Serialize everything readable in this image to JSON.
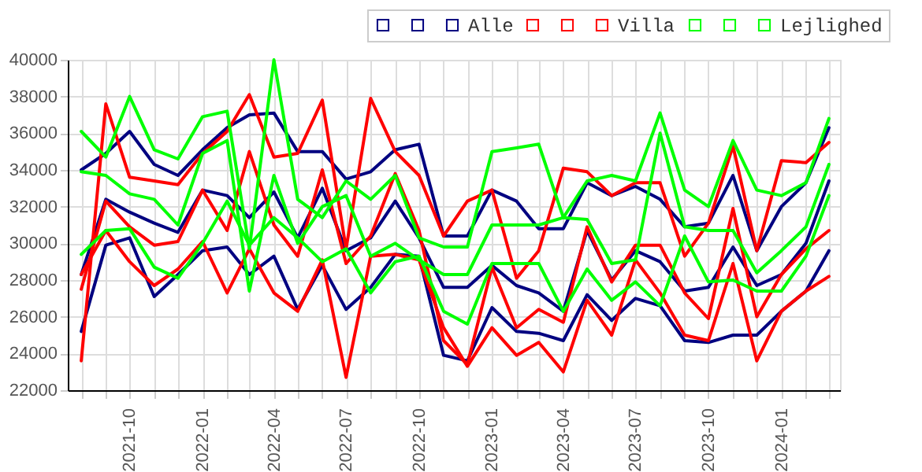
{
  "chart_data": {
    "type": "line",
    "x": [
      "2021-08",
      "2021-09",
      "2021-10",
      "2021-11",
      "2021-12",
      "2022-01",
      "2022-02",
      "2022-03",
      "2022-04",
      "2022-05",
      "2022-06",
      "2022-07",
      "2022-08",
      "2022-09",
      "2022-10",
      "2022-11",
      "2022-12",
      "2023-01",
      "2023-02",
      "2023-03",
      "2023-04",
      "2023-05",
      "2023-06",
      "2023-07",
      "2023-08",
      "2023-09",
      "2023-10",
      "2023-11",
      "2023-12",
      "2024-01",
      "2024-02",
      "2024-03"
    ],
    "series": [
      {
        "color": "#000080",
        "values": [
          34000,
          34900,
          36100,
          34300,
          33700,
          35100,
          36300,
          37000,
          37100,
          35000,
          35000,
          33500,
          33900,
          35100,
          35400,
          30400,
          30400,
          32900,
          32300,
          30800,
          30800,
          33300,
          32600,
          33100,
          32400,
          30900,
          31100,
          33700,
          29600,
          32000,
          33300,
          36300
        ]
      },
      {
        "color": "#000080",
        "values": [
          28300,
          32400,
          31700,
          31100,
          30600,
          32900,
          32600,
          31400,
          32800,
          30300,
          33000,
          29600,
          30300,
          32300,
          30300,
          27600,
          27600,
          28800,
          27700,
          27300,
          26300,
          30700,
          28000,
          29600,
          29000,
          27400,
          27600,
          29800,
          27700,
          28300,
          30000,
          33400
        ]
      },
      {
        "name": "Alle",
        "color": "#000080",
        "values": [
          25200,
          29900,
          30300,
          27100,
          28300,
          29600,
          29800,
          28300,
          29300,
          26400,
          28800,
          26400,
          27600,
          29400,
          29300,
          23900,
          23600,
          26500,
          25200,
          25100,
          24700,
          27200,
          25800,
          27000,
          26600,
          24700,
          24600,
          25000,
          25000,
          26300,
          27400,
          29600
        ]
      },
      {
        "color": "#ff0000",
        "values": [
          23600,
          37600,
          33600,
          33400,
          33200,
          34900,
          36100,
          38100,
          34700,
          34900,
          37800,
          29700,
          37900,
          35000,
          33700,
          30400,
          32300,
          32900,
          28100,
          29600,
          34100,
          33900,
          32600,
          33300,
          33300,
          29300,
          31100,
          35300,
          29600,
          34500,
          34400,
          35500
        ]
      },
      {
        "color": "#ff0000",
        "values": [
          27500,
          32300,
          30900,
          29900,
          30100,
          32900,
          30700,
          35000,
          31000,
          29300,
          34000,
          28900,
          30400,
          33800,
          30700,
          24700,
          23400,
          28700,
          25400,
          26400,
          25700,
          30900,
          27900,
          29900,
          29900,
          27300,
          25900,
          31900,
          26000,
          28300,
          29700,
          30700
        ]
      },
      {
        "name": "Villa",
        "color": "#ff0000",
        "values": [
          28300,
          30700,
          29000,
          27700,
          28600,
          30100,
          27300,
          29700,
          27300,
          26300,
          29100,
          22700,
          29300,
          29400,
          29100,
          25400,
          23300,
          25400,
          23900,
          24600,
          23000,
          26900,
          25000,
          29100,
          27300,
          25000,
          24700,
          28900,
          23600,
          26300,
          27400,
          28200
        ]
      },
      {
        "color": "#00ff00",
        "values": [
          36100,
          34700,
          38000,
          35100,
          34600,
          36900,
          37200,
          29700,
          40000,
          32400,
          31400,
          33400,
          32400,
          33700,
          30300,
          29800,
          29800,
          35000,
          35200,
          35400,
          31400,
          33400,
          33700,
          33400,
          37100,
          32900,
          32000,
          35600,
          32900,
          32600,
          33300,
          36800
        ]
      },
      {
        "color": "#00ff00",
        "values": [
          33900,
          33700,
          32700,
          32400,
          31000,
          34900,
          35600,
          27400,
          33700,
          30000,
          32000,
          32600,
          29300,
          30000,
          29100,
          28300,
          28300,
          31000,
          31000,
          31000,
          31400,
          31300,
          28900,
          29100,
          36000,
          30900,
          30700,
          30700,
          28400,
          29600,
          30900,
          34300
        ]
      },
      {
        "name": "Lejlighed",
        "color": "#00ff00",
        "values": [
          29400,
          30700,
          30800,
          28700,
          28100,
          30000,
          32300,
          29900,
          31400,
          30300,
          29000,
          29700,
          27300,
          29000,
          29300,
          26300,
          25600,
          28900,
          28900,
          28900,
          26300,
          28600,
          26900,
          27900,
          26600,
          30400,
          27900,
          28000,
          27400,
          27400,
          29300,
          32600
        ]
      }
    ],
    "xlim": [
      "2021-07-15",
      "2024-03-15"
    ],
    "xticks": [
      {
        "value": "2021-08",
        "label": null
      },
      {
        "value": "2021-09",
        "label": null
      },
      "2021-10",
      {
        "value": "2021-11",
        "label": null
      },
      {
        "value": "2021-12",
        "label": null
      },
      "2022-01",
      {
        "value": "2022-02",
        "label": null
      },
      {
        "value": "2022-03",
        "label": null
      },
      "2022-04",
      {
        "value": "2022-05",
        "label": null
      },
      {
        "value": "2022-06",
        "label": null
      },
      "2022-07",
      {
        "value": "2022-08",
        "label": null
      },
      {
        "value": "2022-09",
        "label": null
      },
      "2022-10",
      {
        "value": "2022-11",
        "label": null
      },
      {
        "value": "2022-12",
        "label": null
      },
      "2023-01",
      {
        "value": "2023-02",
        "label": null
      },
      {
        "value": "2023-03",
        "label": null
      },
      "2023-04",
      {
        "value": "2023-05",
        "label": null
      },
      {
        "value": "2023-06",
        "label": null
      },
      "2023-07",
      {
        "value": "2023-08",
        "label": null
      },
      {
        "value": "2023-09",
        "label": null
      },
      "2023-10",
      {
        "value": "2023-11",
        "label": null
      },
      {
        "value": "2023-12",
        "label": null
      },
      "2024-01",
      {
        "value": "2024-02",
        "label": null
      },
      {
        "value": "2024-03",
        "label": null
      }
    ],
    "ylim": [
      22000,
      40000
    ],
    "yticks": [
      22000,
      24000,
      26000,
      28000,
      30000,
      32000,
      34000,
      36000,
      38000,
      40000
    ],
    "grid": true,
    "legend": "top right"
  }
}
